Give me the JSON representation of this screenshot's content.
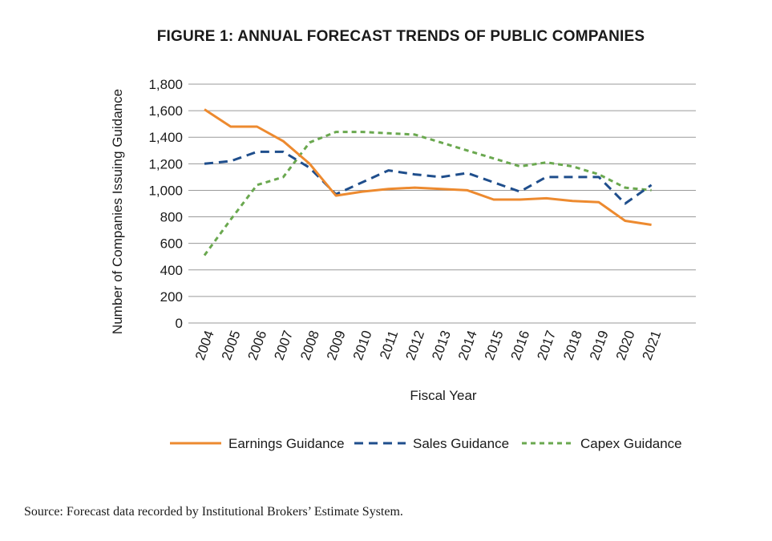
{
  "chart_data": {
    "type": "line",
    "title": "FIGURE 1: ANNUAL FORECAST TRENDS OF PUBLIC COMPANIES",
    "xlabel": "Fiscal Year",
    "ylabel": "Number of Companies Issuing Guidance",
    "ylim": [
      0,
      1800
    ],
    "yticks": [
      0,
      200,
      400,
      600,
      800,
      1000,
      1200,
      1400,
      1600,
      1800
    ],
    "ytick_labels": [
      "0",
      "200",
      "400",
      "600",
      "800",
      "1,000",
      "1,200",
      "1,400",
      "1,600",
      "1,800"
    ],
    "categories": [
      "2004",
      "2005",
      "2006",
      "2007",
      "2008",
      "2009",
      "2010",
      "2011",
      "2012",
      "2013",
      "2014",
      "2015",
      "2016",
      "2017",
      "2018",
      "2019",
      "2020",
      "2021"
    ],
    "grid": true,
    "legend_position": "bottom",
    "series": [
      {
        "name": "Earnings Guidance",
        "color": "#ed8a2f",
        "style": "solid",
        "values": [
          1610,
          1480,
          1480,
          1370,
          1200,
          960,
          990,
          1010,
          1020,
          1010,
          1000,
          930,
          930,
          940,
          920,
          910,
          770,
          740
        ]
      },
      {
        "name": "Sales Guidance",
        "color": "#1f4e8c",
        "style": "dashed",
        "values": [
          1200,
          1220,
          1290,
          1290,
          1170,
          970,
          1060,
          1150,
          1120,
          1100,
          1130,
          1060,
          990,
          1100,
          1100,
          1100,
          900,
          1040
        ]
      },
      {
        "name": "Capex Guidance",
        "color": "#6aa84f",
        "style": "dotted",
        "values": [
          510,
          780,
          1040,
          1100,
          1360,
          1440,
          1440,
          1430,
          1420,
          1360,
          1300,
          1240,
          1180,
          1210,
          1180,
          1120,
          1020,
          1000
        ]
      }
    ]
  },
  "source": "Source: Forecast data recorded by Institutional Brokers’ Estimate System."
}
